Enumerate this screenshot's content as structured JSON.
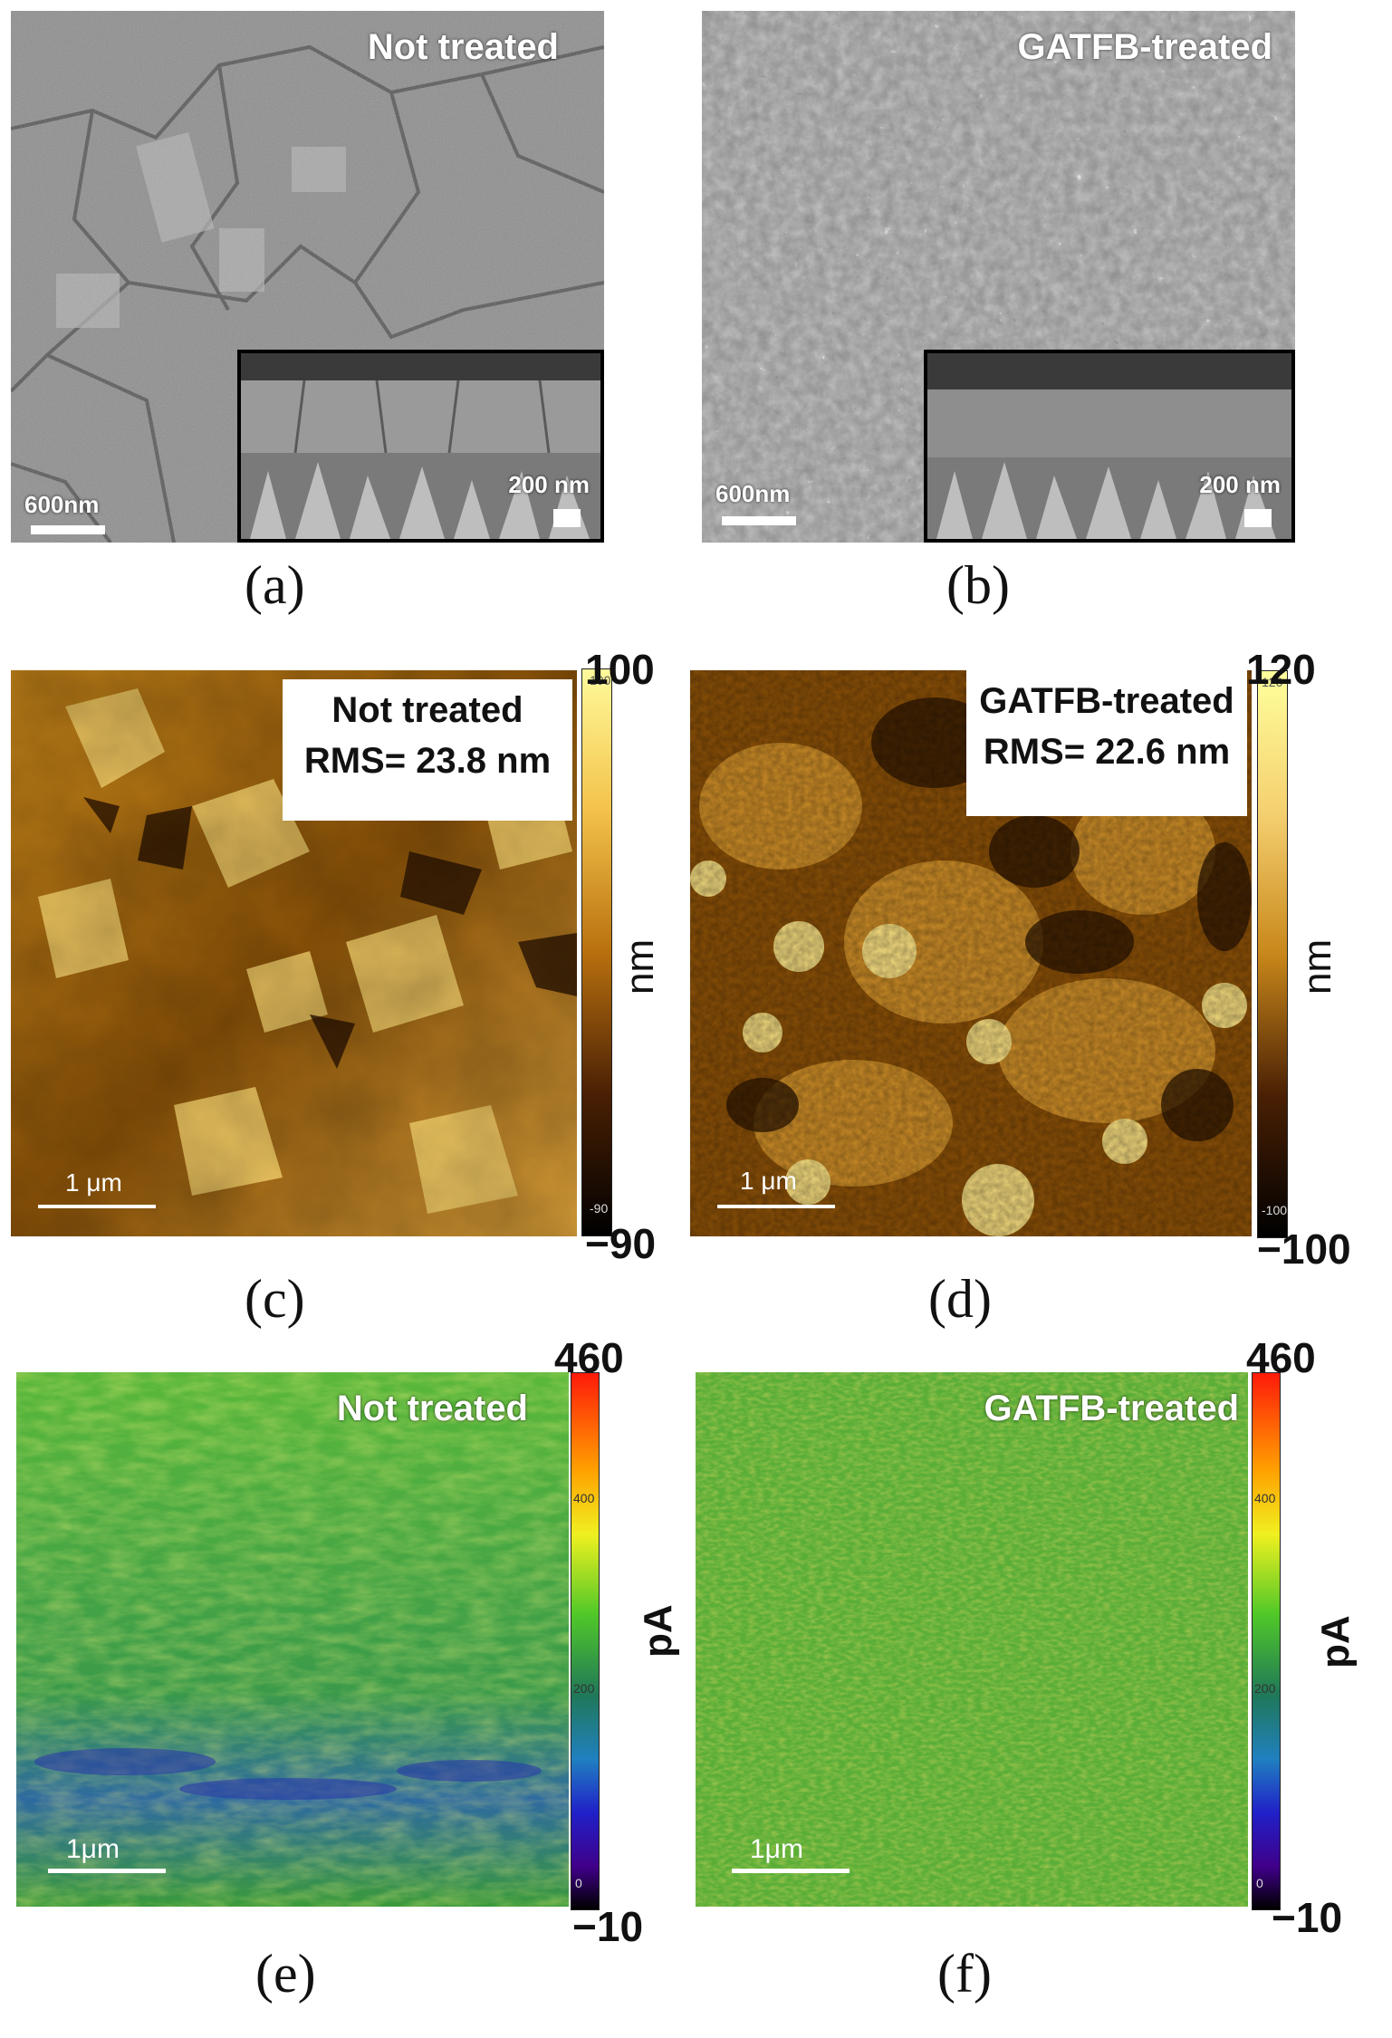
{
  "panels": {
    "a": {
      "caption": "(a)",
      "label": "Not treated",
      "scale_main": "600nm",
      "scale_inset": "200 nm"
    },
    "b": {
      "caption": "(b)",
      "label": "GATFB-treated",
      "scale_main": "600nm",
      "scale_inset": "200 nm"
    },
    "c": {
      "caption": "(c)",
      "label": "Not treated",
      "rms": "RMS= 23.8 nm",
      "scale": "1 μm",
      "cbar_max": "100",
      "cbar_min": "−90",
      "cbar_unit": "nm",
      "tick_top": "100",
      "tick_bottom": "-90"
    },
    "d": {
      "caption": "(d)",
      "label": "GATFB-treated",
      "rms": "RMS= 22.6 nm",
      "scale": "1 μm",
      "cbar_max": "120",
      "cbar_min": "−100",
      "cbar_unit": "nm",
      "tick_top": "120",
      "tick_bottom": "-100"
    },
    "e": {
      "caption": "(e)",
      "label": "Not treated",
      "scale": "1μm",
      "cbar_max": "460",
      "cbar_min": "−10",
      "cbar_unit": "pA",
      "tick_400": "400",
      "tick_200": "200",
      "tick_0": "0"
    },
    "f": {
      "caption": "(f)",
      "label": "GATFB-treated",
      "scale": "1μm",
      "cbar_max": "460",
      "cbar_min": "−10",
      "cbar_unit": "pA",
      "tick_400": "400",
      "tick_200": "200",
      "tick_0": "0"
    }
  },
  "colors": {
    "sem_gray": "#8a8a8a",
    "afm_dark": "#3a1e04",
    "afm_light": "#f5d070",
    "cafm_green": "#3aa83a",
    "cafm_yellow": "#d6d62a"
  }
}
